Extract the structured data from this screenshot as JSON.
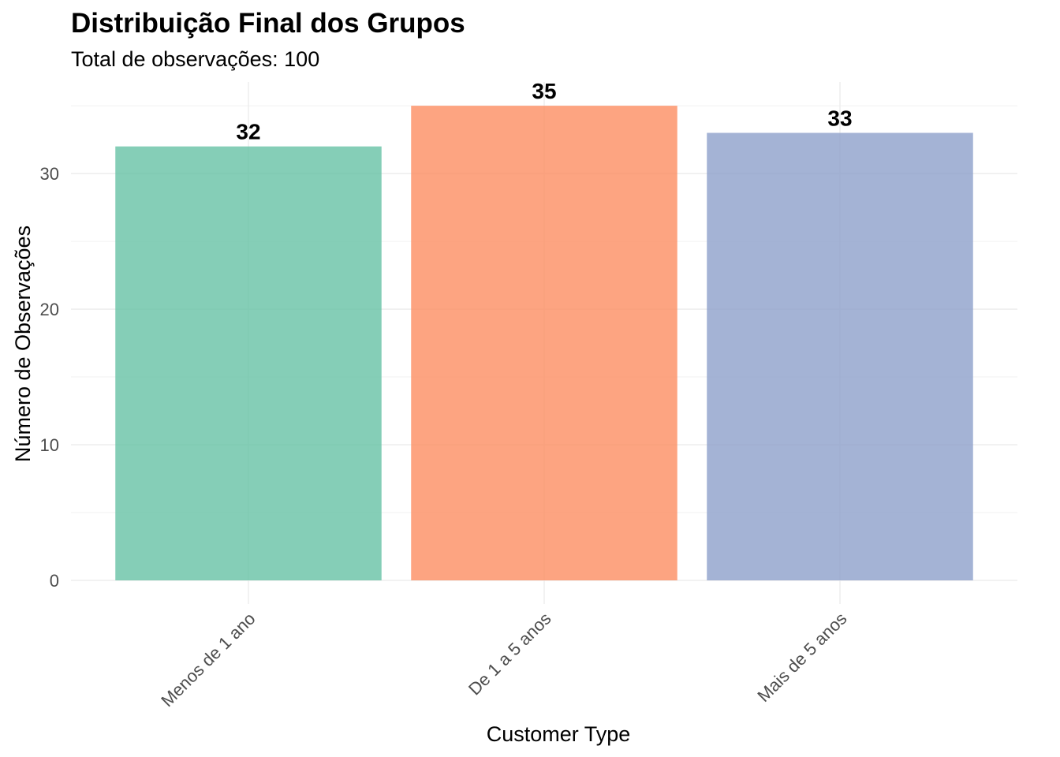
{
  "chart_data": {
    "type": "bar",
    "title": "Distribuição Final dos Grupos",
    "subtitle": "Total de observações: 100",
    "xlabel": "Customer Type",
    "ylabel": "Número de Observações",
    "categories": [
      "Menos de 1 ano",
      "De 1 a 5 anos",
      "Mais de 5 anos"
    ],
    "values": [
      32,
      35,
      33
    ],
    "data_labels": [
      "32",
      "35",
      "33"
    ],
    "bar_colors": [
      "#66C2A5",
      "#FC8D62",
      "#8DA0CB"
    ],
    "ylim": [
      0,
      36.75
    ],
    "yticks": [
      0,
      10,
      20,
      30
    ],
    "ytick_labels": [
      "0",
      "10",
      "20",
      "30"
    ],
    "grid": true,
    "legend": "none"
  }
}
